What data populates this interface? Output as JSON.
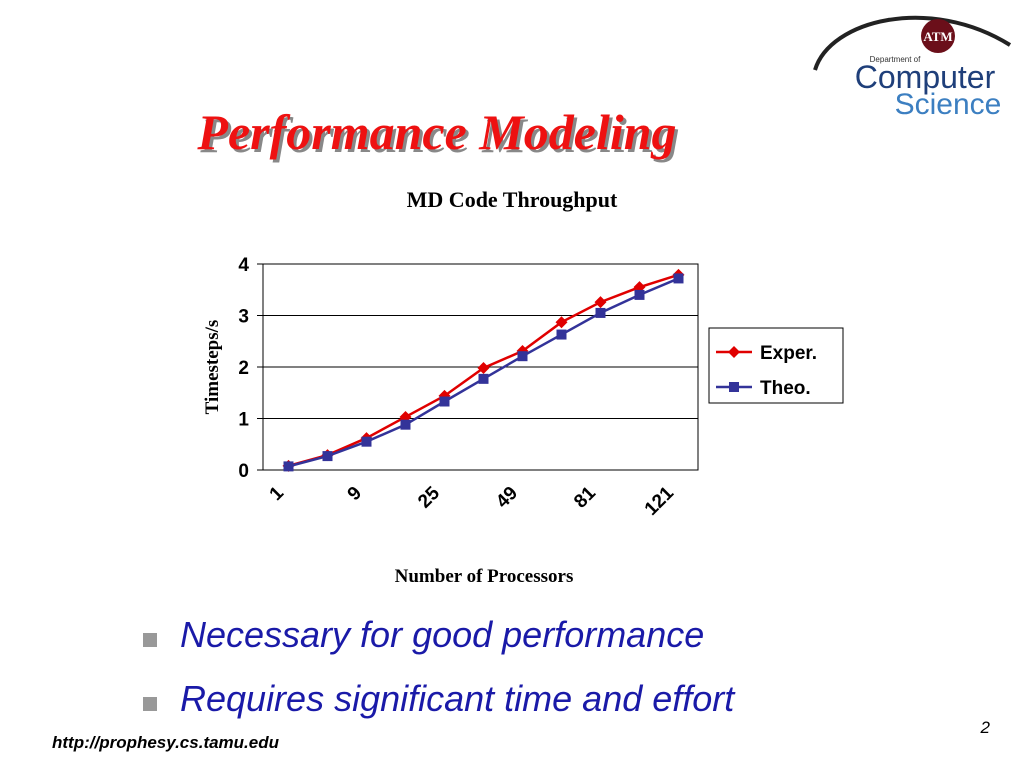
{
  "slide": {
    "title": "Performance Modeling",
    "bullets": [
      "Necessary for good performance",
      "Requires significant time and effort"
    ],
    "footer_url": "http://prophesy.cs.tamu.edu",
    "page_number": "2"
  },
  "logo": {
    "mark": "ATM",
    "line1": "Department of",
    "line2": "Computer",
    "line3": "Science"
  },
  "chart_data": {
    "type": "line",
    "title": "MD Code Throughput",
    "x_label": "Number of Processors",
    "y_label": "Timesteps/s",
    "categories": [
      1,
      null,
      9,
      null,
      25,
      null,
      49,
      null,
      81,
      null,
      121
    ],
    "series": [
      {
        "name": "Exper.",
        "color": "#e00000",
        "marker": "diamond",
        "values": [
          0.08,
          0.29,
          0.62,
          1.03,
          1.44,
          1.98,
          2.31,
          2.87,
          3.26,
          3.55,
          3.79
        ]
      },
      {
        "name": "Theo.",
        "color": "#333399",
        "marker": "square",
        "values": [
          0.07,
          0.27,
          0.55,
          0.88,
          1.33,
          1.77,
          2.21,
          2.63,
          3.05,
          3.4,
          3.72
        ]
      }
    ],
    "ylim": [
      0,
      4
    ],
    "yticks": [
      0,
      1,
      2,
      3,
      4
    ],
    "grid": true,
    "legend": "right"
  }
}
